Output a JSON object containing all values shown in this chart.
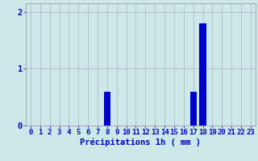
{
  "hours": [
    0,
    1,
    2,
    3,
    4,
    5,
    6,
    7,
    8,
    9,
    10,
    11,
    12,
    13,
    14,
    15,
    16,
    17,
    18,
    19,
    20,
    21,
    22,
    23
  ],
  "values": [
    0,
    0,
    0,
    0,
    0,
    0,
    0,
    0,
    0.6,
    0,
    0,
    0,
    0,
    0,
    0,
    0,
    0,
    0.6,
    1.8,
    0,
    0,
    0,
    0,
    0
  ],
  "bar_color": "#0000cc",
  "background_color": "#cce8e8",
  "plot_bg_color": "#cce8e8",
  "grid_color": "#b0b0c0",
  "xlabel": "Précipitations 1h ( mm )",
  "xlabel_color": "#0000bb",
  "ylim": [
    0,
    2.15
  ],
  "yticks": [
    0,
    1,
    2
  ],
  "tick_color": "#0000bb",
  "label_fontsize": 7.5,
  "tick_fontsize": 6.5
}
